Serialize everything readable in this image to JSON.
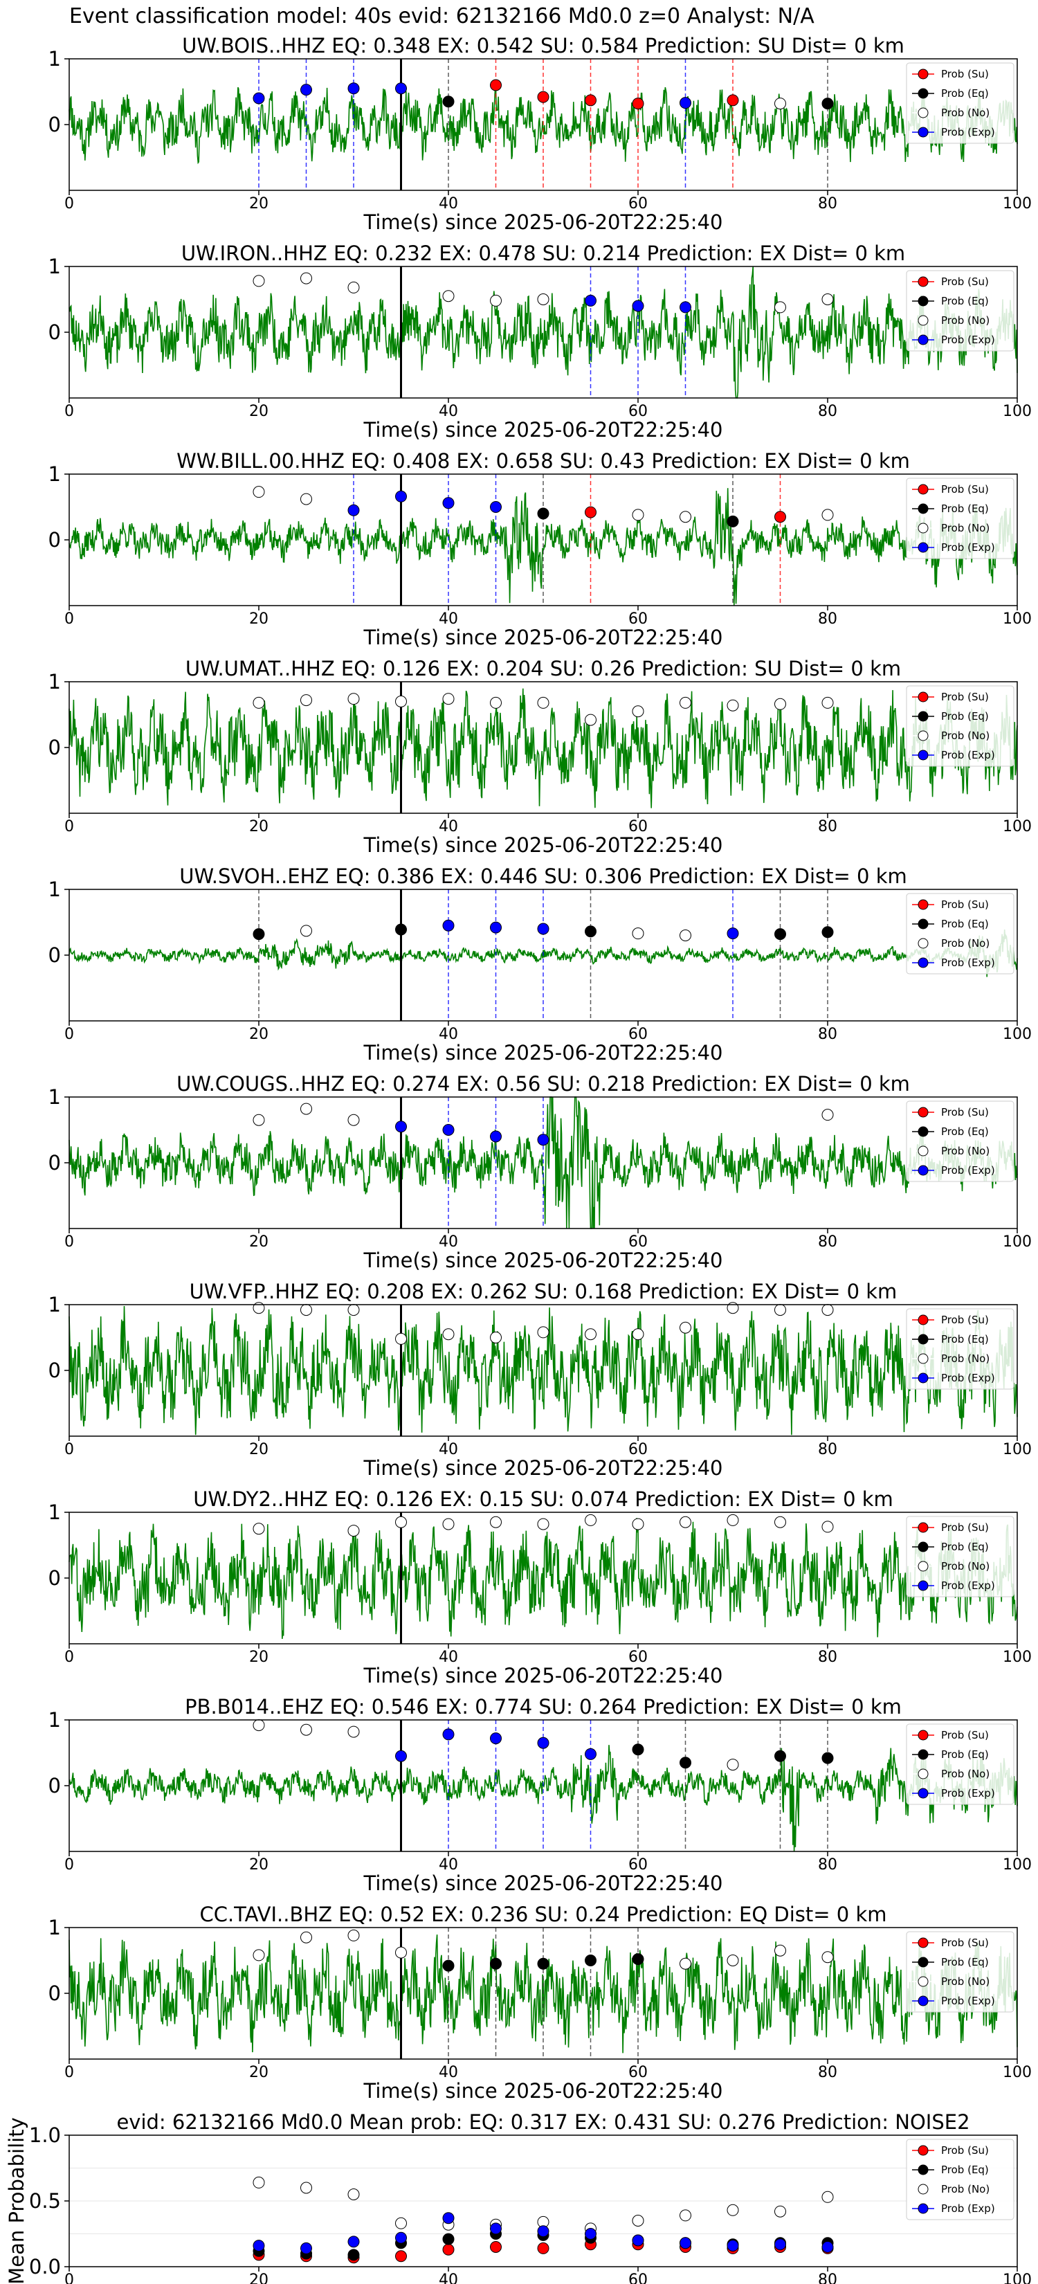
{
  "page_title": "Event classification model: 40s evid: 62132166 Md0.0 z=0 Analyst: N/A",
  "legend_labels": [
    "Prob (Su)",
    "Prob (Eq)",
    "Prob (No)",
    "Prob (Exp)"
  ],
  "colors": {
    "su": "#ff0000",
    "eq": "#000000",
    "no": "#ffffff",
    "exp": "#0000ff",
    "waveform": "#008000"
  },
  "chart_data": [
    {
      "type": "line",
      "title": "UW.BOIS..HHZ   EQ: 0.348  EX: 0.542  SU: 0.584   Prediction: SU    Dist= 0 km",
      "xlabel": "Time(s) since 2025-06-20T22:25:40",
      "xlim": [
        0,
        100
      ],
      "ylim": [
        -1,
        1
      ],
      "xticks": [
        0,
        20,
        40,
        60,
        80,
        100
      ],
      "yticks": [
        0,
        1
      ],
      "grid": false,
      "legend": "top-right",
      "pick_time": 35,
      "waveform_seed": 11,
      "waveform_amp": 0.35,
      "bursts": [],
      "points": [
        [
          20,
          "exp",
          0.4
        ],
        [
          25,
          "exp",
          0.53
        ],
        [
          30,
          "exp",
          0.55
        ],
        [
          35,
          "exp",
          0.55
        ],
        [
          40,
          "eq",
          0.35
        ],
        [
          45,
          "su",
          0.6
        ],
        [
          50,
          "su",
          0.42
        ],
        [
          55,
          "su",
          0.37
        ],
        [
          60,
          "su",
          0.32
        ],
        [
          65,
          "exp",
          0.33
        ],
        [
          70,
          "su",
          0.37
        ],
        [
          75,
          "no",
          0.32
        ],
        [
          80,
          "eq",
          0.32
        ]
      ]
    },
    {
      "type": "line",
      "title": "UW.IRON..HHZ   EQ: 0.232  EX: 0.478  SU: 0.214   Prediction: EX    Dist= 0 km",
      "xlabel": "Time(s) since 2025-06-20T22:25:40",
      "xlim": [
        0,
        100
      ],
      "ylim": [
        -1,
        1
      ],
      "xticks": [
        0,
        20,
        40,
        60,
        80,
        100
      ],
      "yticks": [
        0,
        1
      ],
      "grid": false,
      "legend": "top-right",
      "pick_time": 35,
      "waveform_seed": 23,
      "waveform_amp": 0.4,
      "bursts": [
        [
          70,
          74,
          2.0
        ]
      ],
      "points": [
        [
          20,
          "no",
          0.78
        ],
        [
          25,
          "no",
          0.82
        ],
        [
          30,
          "no",
          0.68
        ],
        [
          40,
          "no",
          0.55
        ],
        [
          45,
          "no",
          0.48
        ],
        [
          50,
          "no",
          0.5
        ],
        [
          55,
          "exp",
          0.48
        ],
        [
          60,
          "exp",
          0.4
        ],
        [
          65,
          "exp",
          0.38
        ],
        [
          75,
          "no",
          0.38
        ],
        [
          80,
          "no",
          0.5
        ]
      ]
    },
    {
      "type": "line",
      "title": "WW.BILL.00.HHZ   EQ: 0.408  EX: 0.658  SU: 0.43   Prediction: EX    Dist= 0 km",
      "xlabel": "Time(s) since 2025-06-20T22:25:40",
      "xlim": [
        0,
        100
      ],
      "ylim": [
        -1,
        1
      ],
      "xticks": [
        0,
        20,
        40,
        60,
        80,
        100
      ],
      "yticks": [
        0,
        1
      ],
      "grid": false,
      "legend": "top-right",
      "pick_time": 35,
      "waveform_seed": 37,
      "waveform_amp": 0.22,
      "bursts": [
        [
          46,
          50,
          3.0
        ],
        [
          68,
          71,
          3.0
        ],
        [
          90,
          100,
          2.0
        ]
      ],
      "points": [
        [
          20,
          "no",
          0.73
        ],
        [
          25,
          "no",
          0.62
        ],
        [
          30,
          "exp",
          0.45
        ],
        [
          35,
          "exp",
          0.66
        ],
        [
          40,
          "exp",
          0.56
        ],
        [
          45,
          "exp",
          0.5
        ],
        [
          50,
          "eq",
          0.4
        ],
        [
          55,
          "su",
          0.42
        ],
        [
          60,
          "no",
          0.38
        ],
        [
          65,
          "no",
          0.35
        ],
        [
          70,
          "eq",
          0.28
        ],
        [
          75,
          "su",
          0.35
        ],
        [
          80,
          "no",
          0.38
        ]
      ]
    },
    {
      "type": "line",
      "title": "UW.UMAT..HHZ   EQ: 0.126  EX: 0.204  SU: 0.26   Prediction: SU    Dist= 0 km",
      "xlabel": "Time(s) since 2025-06-20T22:25:40",
      "xlim": [
        0,
        100
      ],
      "ylim": [
        -1,
        1
      ],
      "xticks": [
        0,
        20,
        40,
        60,
        80,
        100
      ],
      "yticks": [
        0,
        1
      ],
      "grid": false,
      "legend": "top-right",
      "pick_time": 35,
      "waveform_seed": 41,
      "waveform_amp": 0.55,
      "bursts": [],
      "points": [
        [
          20,
          "no",
          0.68
        ],
        [
          25,
          "no",
          0.72
        ],
        [
          30,
          "no",
          0.74
        ],
        [
          35,
          "no",
          0.7
        ],
        [
          40,
          "no",
          0.74
        ],
        [
          45,
          "no",
          0.68
        ],
        [
          50,
          "no",
          0.68
        ],
        [
          55,
          "no",
          0.42
        ],
        [
          60,
          "no",
          0.55
        ],
        [
          65,
          "no",
          0.68
        ],
        [
          70,
          "no",
          0.64
        ],
        [
          75,
          "no",
          0.66
        ],
        [
          80,
          "no",
          0.68
        ]
      ]
    },
    {
      "type": "line",
      "title": "UW.SVOH..EHZ   EQ: 0.386  EX: 0.446  SU: 0.306   Prediction: EX    Dist= 0 km",
      "xlabel": "Time(s) since 2025-06-20T22:25:40",
      "xlim": [
        0,
        100
      ],
      "ylim": [
        -1,
        1
      ],
      "xticks": [
        0,
        20,
        40,
        60,
        80,
        100
      ],
      "yticks": [
        0,
        1
      ],
      "grid": false,
      "legend": "top-right",
      "pick_time": 35,
      "waveform_seed": 53,
      "waveform_amp": 0.08,
      "bursts": [
        [
          20,
          30,
          2.0
        ],
        [
          95,
          100,
          3.0
        ]
      ],
      "points": [
        [
          20,
          "eq",
          0.32
        ],
        [
          25,
          "no",
          0.37
        ],
        [
          35,
          "eq",
          0.39
        ],
        [
          40,
          "exp",
          0.45
        ],
        [
          45,
          "exp",
          0.42
        ],
        [
          50,
          "exp",
          0.4
        ],
        [
          55,
          "eq",
          0.36
        ],
        [
          60,
          "no",
          0.33
        ],
        [
          65,
          "no",
          0.3
        ],
        [
          70,
          "exp",
          0.33
        ],
        [
          75,
          "eq",
          0.32
        ],
        [
          80,
          "eq",
          0.35
        ]
      ]
    },
    {
      "type": "line",
      "title": "UW.COUGS..HHZ   EQ: 0.274  EX: 0.56  SU: 0.218   Prediction: EX    Dist= 0 km",
      "xlabel": "Time(s) since 2025-06-20T22:25:40",
      "xlim": [
        0,
        100
      ],
      "ylim": [
        -1,
        1
      ],
      "xticks": [
        0,
        20,
        40,
        60,
        80,
        100
      ],
      "yticks": [
        0,
        1
      ],
      "grid": false,
      "legend": "top-right",
      "pick_time": 35,
      "waveform_seed": 67,
      "waveform_amp": 0.3,
      "bursts": [
        [
          50,
          56,
          3.2
        ]
      ],
      "points": [
        [
          20,
          "no",
          0.65
        ],
        [
          25,
          "no",
          0.82
        ],
        [
          30,
          "no",
          0.65
        ],
        [
          35,
          "exp",
          0.55
        ],
        [
          40,
          "exp",
          0.5
        ],
        [
          45,
          "exp",
          0.4
        ],
        [
          50,
          "exp",
          0.35
        ],
        [
          80,
          "no",
          0.73
        ]
      ]
    },
    {
      "type": "line",
      "title": "UW.VFP..HHZ   EQ: 0.208  EX: 0.262  SU: 0.168   Prediction: EX    Dist= 0 km",
      "xlabel": "Time(s) since 2025-06-20T22:25:40",
      "xlim": [
        0,
        100
      ],
      "ylim": [
        -1,
        1
      ],
      "xticks": [
        0,
        20,
        40,
        60,
        80,
        100
      ],
      "yticks": [
        0,
        1
      ],
      "grid": false,
      "legend": "top-right",
      "pick_time": 35,
      "waveform_seed": 79,
      "waveform_amp": 0.6,
      "bursts": [],
      "points": [
        [
          20,
          "no",
          0.95
        ],
        [
          25,
          "no",
          0.92
        ],
        [
          30,
          "no",
          0.92
        ],
        [
          35,
          "no",
          0.48
        ],
        [
          40,
          "no",
          0.55
        ],
        [
          45,
          "no",
          0.5
        ],
        [
          50,
          "no",
          0.58
        ],
        [
          55,
          "no",
          0.55
        ],
        [
          60,
          "no",
          0.55
        ],
        [
          65,
          "no",
          0.65
        ],
        [
          70,
          "no",
          0.95
        ],
        [
          75,
          "no",
          0.92
        ],
        [
          80,
          "no",
          0.92
        ]
      ]
    },
    {
      "type": "line",
      "title": "UW.DY2..HHZ   EQ: 0.126  EX: 0.15  SU: 0.074   Prediction: EX    Dist= 0 km",
      "xlabel": "Time(s) since 2025-06-20T22:25:40",
      "xlim": [
        0,
        100
      ],
      "ylim": [
        -1,
        1
      ],
      "xticks": [
        0,
        20,
        40,
        60,
        80,
        100
      ],
      "yticks": [
        0,
        1
      ],
      "grid": false,
      "legend": "top-right",
      "pick_time": 35,
      "waveform_seed": 83,
      "waveform_amp": 0.55,
      "bursts": [],
      "points": [
        [
          20,
          "no",
          0.75
        ],
        [
          30,
          "no",
          0.72
        ],
        [
          35,
          "no",
          0.85
        ],
        [
          40,
          "no",
          0.82
        ],
        [
          45,
          "no",
          0.85
        ],
        [
          50,
          "no",
          0.82
        ],
        [
          55,
          "no",
          0.88
        ],
        [
          60,
          "no",
          0.82
        ],
        [
          65,
          "no",
          0.85
        ],
        [
          70,
          "no",
          0.88
        ],
        [
          75,
          "no",
          0.85
        ],
        [
          80,
          "no",
          0.78
        ]
      ]
    },
    {
      "type": "line",
      "title": "PB.B014..EHZ   EQ: 0.546  EX: 0.774  SU: 0.264   Prediction: EX    Dist= 0 km",
      "xlabel": "Time(s) since 2025-06-20T22:25:40",
      "xlim": [
        0,
        100
      ],
      "ylim": [
        -1,
        1
      ],
      "xticks": [
        0,
        20,
        40,
        60,
        80,
        100
      ],
      "yticks": [
        0,
        1
      ],
      "grid": false,
      "legend": "top-right",
      "pick_time": 35,
      "waveform_seed": 97,
      "waveform_amp": 0.18,
      "bursts": [
        [
          53,
          58,
          2.5
        ],
        [
          75,
          77,
          4.0
        ],
        [
          85,
          100,
          2.2
        ]
      ],
      "points": [
        [
          20,
          "no",
          0.92
        ],
        [
          25,
          "no",
          0.85
        ],
        [
          30,
          "no",
          0.82
        ],
        [
          35,
          "exp",
          0.45
        ],
        [
          40,
          "exp",
          0.78
        ],
        [
          45,
          "exp",
          0.72
        ],
        [
          50,
          "exp",
          0.65
        ],
        [
          55,
          "exp",
          0.48
        ],
        [
          60,
          "eq",
          0.55
        ],
        [
          65,
          "eq",
          0.35
        ],
        [
          70,
          "no",
          0.32
        ],
        [
          75,
          "eq",
          0.45
        ],
        [
          80,
          "eq",
          0.42
        ]
      ]
    },
    {
      "type": "line",
      "title": "CC.TAVI..BHZ   EQ: 0.52  EX: 0.236  SU: 0.24   Prediction: EQ    Dist= 0 km",
      "xlabel": "Time(s) since 2025-06-20T22:25:40",
      "xlim": [
        0,
        100
      ],
      "ylim": [
        -1,
        1
      ],
      "xticks": [
        0,
        20,
        40,
        60,
        80,
        100
      ],
      "yticks": [
        0,
        1
      ],
      "grid": false,
      "legend": "top-right",
      "pick_time": 35,
      "waveform_seed": 101,
      "waveform_amp": 0.55,
      "bursts": [],
      "points": [
        [
          20,
          "no",
          0.58
        ],
        [
          25,
          "no",
          0.85
        ],
        [
          30,
          "no",
          0.88
        ],
        [
          35,
          "no",
          0.62
        ],
        [
          40,
          "eq",
          0.42
        ],
        [
          45,
          "eq",
          0.45
        ],
        [
          50,
          "eq",
          0.45
        ],
        [
          55,
          "eq",
          0.5
        ],
        [
          60,
          "eq",
          0.52
        ],
        [
          65,
          "no",
          0.45
        ],
        [
          70,
          "no",
          0.5
        ],
        [
          75,
          "no",
          0.65
        ],
        [
          80,
          "no",
          0.55
        ]
      ]
    },
    {
      "type": "scatter",
      "title": "evid: 62132166  Md0.0   Mean prob:   EQ: 0.317  EX: 0.431  SU: 0.276   Prediction: NOISE2",
      "xlabel": "",
      "ylabel": "Mean Probability",
      "xlim": [
        0,
        100
      ],
      "ylim": [
        0,
        1
      ],
      "xticks": [
        0,
        20,
        40,
        60,
        80,
        100
      ],
      "yticks": [
        0.0,
        0.5,
        1.0
      ],
      "grid": true,
      "legend": "top-right",
      "x": [
        20,
        25,
        30,
        35,
        40,
        45,
        50,
        55,
        60,
        65,
        70,
        75,
        80
      ],
      "series": [
        {
          "name": "Prob (Su)",
          "key": "su",
          "values": [
            0.09,
            0.08,
            0.07,
            0.08,
            0.13,
            0.15,
            0.14,
            0.17,
            0.17,
            0.15,
            0.14,
            0.15,
            0.14
          ]
        },
        {
          "name": "Prob (Eq)",
          "key": "eq",
          "values": [
            0.12,
            0.1,
            0.09,
            0.18,
            0.21,
            0.25,
            0.24,
            0.22,
            0.2,
            0.18,
            0.17,
            0.18,
            0.18
          ]
        },
        {
          "name": "Prob (No)",
          "key": "no",
          "values": [
            0.64,
            0.6,
            0.55,
            0.33,
            0.32,
            0.32,
            0.34,
            0.29,
            0.35,
            0.39,
            0.43,
            0.42,
            0.53
          ]
        },
        {
          "name": "Prob (Exp)",
          "key": "exp",
          "values": [
            0.16,
            0.14,
            0.19,
            0.22,
            0.37,
            0.29,
            0.27,
            0.25,
            0.2,
            0.18,
            0.16,
            0.17,
            0.15
          ]
        }
      ]
    }
  ]
}
